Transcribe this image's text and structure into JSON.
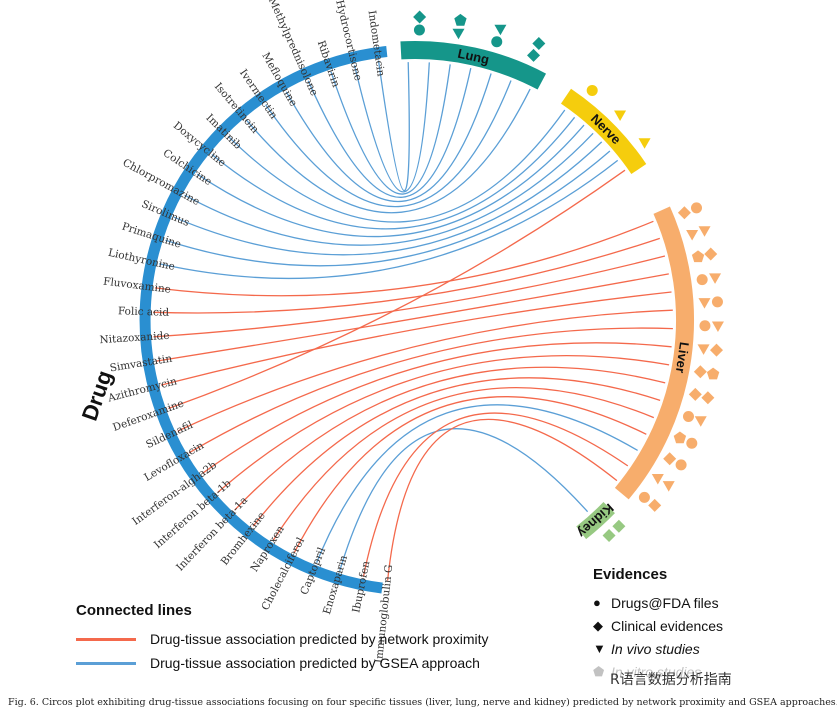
{
  "drug_axis_title": "Drug",
  "colors": {
    "network": "#f4694c",
    "gsea": "#5b9fd6",
    "drug_arc": "#2a8fd1",
    "lung": "#15968a",
    "nerve": "#f5cd0d",
    "liver": "#f7ad6c",
    "kidney": "#97c982"
  },
  "drugs": [
    "Indometacin",
    "Hydrocortisone",
    "Ribavirin",
    "Methylprednisolone",
    "Mefloquine",
    "Ivermectin",
    "Isotretinoin",
    "Imatinib",
    "Doxycycline",
    "Colchicine",
    "Chlorpromazine",
    "Sirolimus",
    "Primaquine",
    "Liothyronine",
    "Fluvoxamine",
    "Folic  acid",
    "Nitazoxanide",
    "Simvastatin",
    "Azithromycin",
    "Deferoxamine",
    "Sildenafil",
    "Levofloxacin",
    "Interferon-algha2b",
    "Interferon  beta-1b",
    "Interferon  beta-1a",
    "Bromhexine",
    "Naproxen",
    "Cholecalciferol",
    "Captopril",
    "Enoxaparin",
    "Ibuprofen",
    "Immunoglobulin  G"
  ],
  "tissues": [
    {
      "name": "Lung",
      "color_key": "lung"
    },
    {
      "name": "Nerve",
      "color_key": "nerve"
    },
    {
      "name": "Liver",
      "color_key": "liver"
    },
    {
      "name": "Kidney",
      "color_key": "kidney"
    }
  ],
  "links": [
    {
      "drug": "Indometacin",
      "tissue": "Lung",
      "method": "gsea"
    },
    {
      "drug": "Hydrocortisone",
      "tissue": "Lung",
      "method": "gsea"
    },
    {
      "drug": "Ribavirin",
      "tissue": "Lung",
      "method": "gsea"
    },
    {
      "drug": "Methylprednisolone",
      "tissue": "Lung",
      "method": "gsea"
    },
    {
      "drug": "Mefloquine",
      "tissue": "Lung",
      "method": "gsea"
    },
    {
      "drug": "Ivermectin",
      "tissue": "Lung",
      "method": "gsea"
    },
    {
      "drug": "Isotretinoin",
      "tissue": "Lung",
      "method": "gsea"
    },
    {
      "drug": "Imatinib",
      "tissue": "Nerve",
      "method": "gsea"
    },
    {
      "drug": "Doxycycline",
      "tissue": "Nerve",
      "method": "gsea"
    },
    {
      "drug": "Colchicine",
      "tissue": "Nerve",
      "method": "gsea"
    },
    {
      "drug": "Chlorpromazine",
      "tissue": "Nerve",
      "method": "gsea"
    },
    {
      "drug": "Sirolimus",
      "tissue": "Nerve",
      "method": "gsea"
    },
    {
      "drug": "Primaquine",
      "tissue": "Nerve",
      "method": "gsea"
    },
    {
      "drug": "Liothyronine",
      "tissue": "Nerve",
      "method": "gsea"
    },
    {
      "drug": "Fluvoxamine",
      "tissue": "Liver",
      "method": "network"
    },
    {
      "drug": "Folic  acid",
      "tissue": "Liver",
      "method": "network"
    },
    {
      "drug": "Nitazoxanide",
      "tissue": "Liver",
      "method": "network"
    },
    {
      "drug": "Simvastatin",
      "tissue": "Liver",
      "method": "network"
    },
    {
      "drug": "Azithromycin",
      "tissue": "Liver",
      "method": "network"
    },
    {
      "drug": "Deferoxamine",
      "tissue": "Nerve",
      "method": "network"
    },
    {
      "drug": "Sildenafil",
      "tissue": "Liver",
      "method": "network"
    },
    {
      "drug": "Levofloxacin",
      "tissue": "Liver",
      "method": "network"
    },
    {
      "drug": "Interferon-algha2b",
      "tissue": "Liver",
      "method": "network"
    },
    {
      "drug": "Interferon  beta-1b",
      "tissue": "Liver",
      "method": "network"
    },
    {
      "drug": "Interferon  beta-1a",
      "tissue": "Liver",
      "method": "network"
    },
    {
      "drug": "Bromhexine",
      "tissue": "Liver",
      "method": "network"
    },
    {
      "drug": "Naproxen",
      "tissue": "Liver",
      "method": "network"
    },
    {
      "drug": "Cholecalciferol",
      "tissue": "Liver",
      "method": "network"
    },
    {
      "drug": "Captopril",
      "tissue": "Liver",
      "method": "gsea"
    },
    {
      "drug": "Enoxaparin",
      "tissue": "Kidney",
      "method": "gsea"
    },
    {
      "drug": "Ibuprofen",
      "tissue": "Liver",
      "method": "network"
    },
    {
      "drug": "Immunoglobulin  G",
      "tissue": "Liver",
      "method": "network"
    }
  ],
  "markers": {
    "Lung": [
      "circle",
      "triangle",
      "circle",
      "diamond",
      "diamond",
      "pentagon",
      "triangle",
      "diamond"
    ],
    "Nerve": [
      "circle",
      "triangle",
      "triangle"
    ],
    "Liver": [
      "diamond",
      "triangle",
      "pentagon",
      "circle",
      "triangle",
      "circle",
      "triangle",
      "diamond",
      "diamond",
      "circle",
      "pentagon",
      "diamond",
      "triangle",
      "circle",
      "circle",
      "triangle",
      "diamond",
      "triangle",
      "circle",
      "triangle",
      "diamond",
      "pentagon",
      "diamond",
      "triangle",
      "circle",
      "circle",
      "triangle",
      "diamond"
    ],
    "Kidney": [
      "diamond",
      "diamond"
    ]
  },
  "legend_lines": {
    "title": "Connected lines",
    "items": [
      {
        "label": "Drug-tissue association predicted by network proximity",
        "color_key": "network"
      },
      {
        "label": "Drug-tissue association predicted by GSEA approach",
        "color_key": "gsea"
      }
    ]
  },
  "legend_evidence": {
    "title": "Evidences",
    "items": [
      {
        "symbol": "●",
        "label": "Drugs@FDA files"
      },
      {
        "symbol": "◆",
        "label": "Clinical evidences"
      },
      {
        "symbol": "▼",
        "label": "In vivo studies"
      },
      {
        "symbol": "⬟",
        "label": "In vitro studies"
      }
    ]
  },
  "watermark": "R语言数据分析指南",
  "caption": "Fig. 6. Circos plot exhibiting drug-tissue associations focusing on four specific tissues (liver, lung, nerve and kidney) predicted by network proximity and GSEA approaches."
}
